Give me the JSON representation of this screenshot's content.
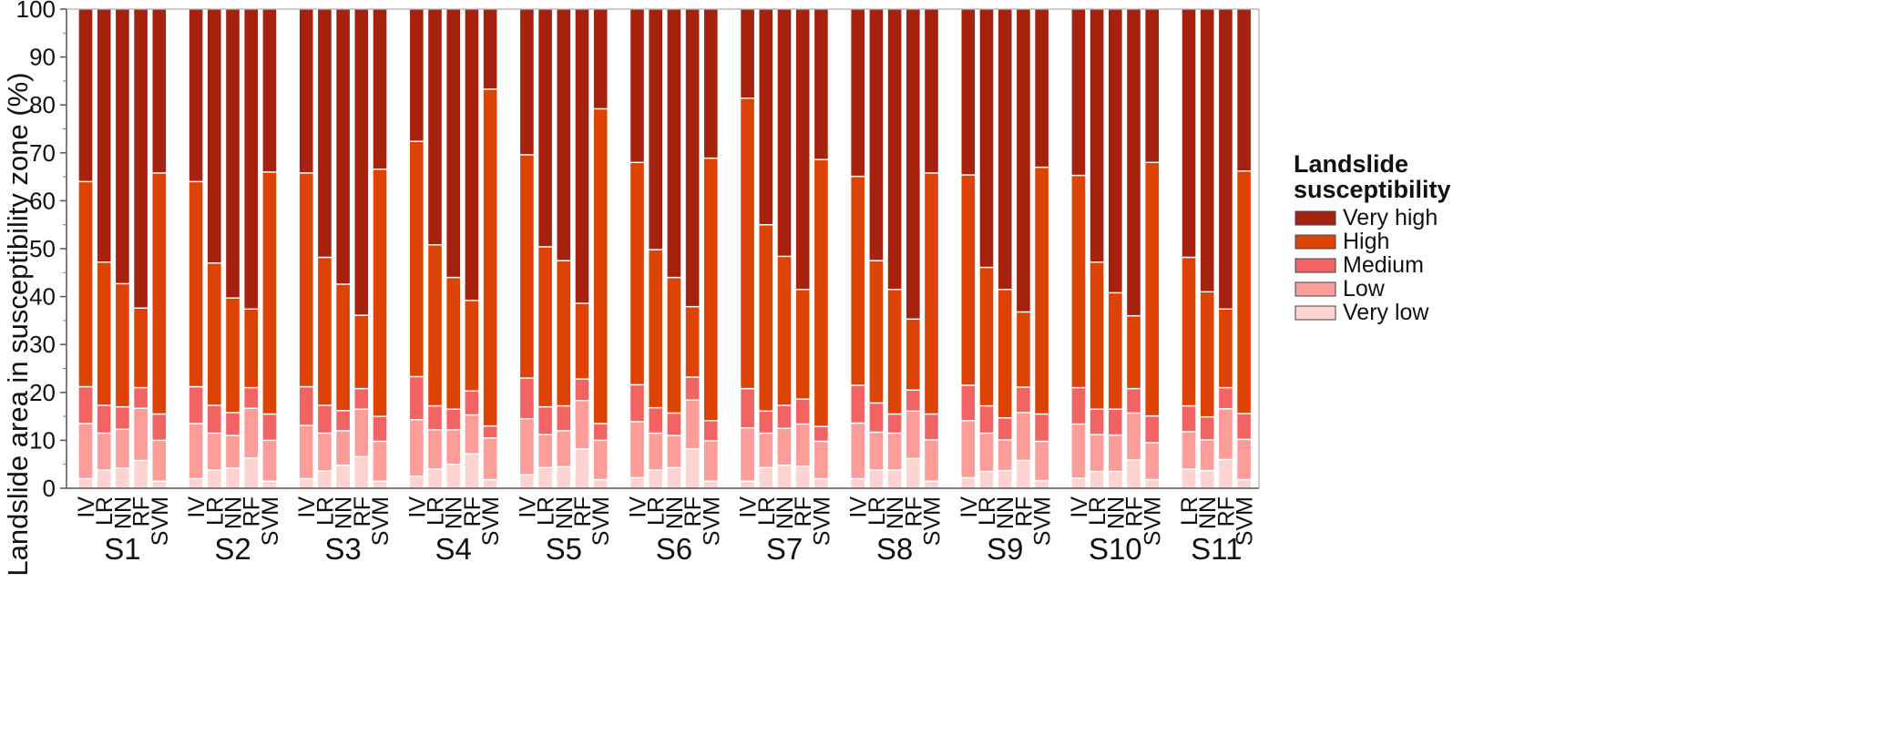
{
  "chart_data": {
    "type": "bar",
    "stacked": true,
    "percent_stacked": true,
    "ylabel": "Landslide area in susceptibility zone (%)",
    "xlabel": "",
    "ylim": [
      0,
      100
    ],
    "yticks": [
      0,
      10,
      20,
      30,
      40,
      50,
      60,
      70,
      80,
      90,
      100
    ],
    "grid": false,
    "legend": {
      "title": "Landslide susceptibility",
      "title_lines": [
        "Landslide",
        "susceptibility"
      ],
      "position": "right",
      "order": [
        "Very high",
        "High",
        "Medium",
        "Low",
        "Very low"
      ]
    },
    "series": [
      {
        "name": "Very low",
        "color": "#fed4d2"
      },
      {
        "name": "Low",
        "color": "#fc9d99"
      },
      {
        "name": "Medium",
        "color": "#f26464"
      },
      {
        "name": "High",
        "color": "#dd4304"
      },
      {
        "name": "Very high",
        "color": "#a6220f"
      }
    ],
    "value_note": "values are cumulative upper bounds (%) for Very low, Low, Medium, High; Very high fills to 100",
    "groups": [
      {
        "label": "S1",
        "bars": [
          {
            "model": "IV",
            "cum": [
              2,
              13.5,
              21.2,
              64
            ]
          },
          {
            "model": "LR",
            "cum": [
              3.8,
              11.5,
              17.3,
              47.2
            ]
          },
          {
            "model": "NN",
            "cum": [
              4.2,
              12.3,
              17,
              42.7
            ]
          },
          {
            "model": "RF",
            "cum": [
              5.8,
              16.7,
              21,
              37.6
            ]
          },
          {
            "model": "SVM",
            "cum": [
              1.5,
              10,
              15.5,
              65.8
            ]
          }
        ]
      },
      {
        "label": "S2",
        "bars": [
          {
            "model": "IV",
            "cum": [
              2,
              13.5,
              21.2,
              64
            ]
          },
          {
            "model": "LR",
            "cum": [
              3.8,
              11.5,
              17.3,
              47
            ]
          },
          {
            "model": "NN",
            "cum": [
              4.2,
              11,
              15.8,
              39.7
            ]
          },
          {
            "model": "RF",
            "cum": [
              6.3,
              16.7,
              21,
              37.4
            ]
          },
          {
            "model": "SVM",
            "cum": [
              1.5,
              10,
              15.5,
              66
            ]
          }
        ]
      },
      {
        "label": "S3",
        "bars": [
          {
            "model": "IV",
            "cum": [
              2,
              13.1,
              21.2,
              65.8
            ]
          },
          {
            "model": "LR",
            "cum": [
              3.6,
              11.5,
              17.3,
              48.2
            ]
          },
          {
            "model": "NN",
            "cum": [
              4.8,
              12,
              16.2,
              42.6
            ]
          },
          {
            "model": "RF",
            "cum": [
              6.6,
              16.5,
              20.8,
              36.1
            ]
          },
          {
            "model": "SVM",
            "cum": [
              1.5,
              9.8,
              15,
              66.6
            ]
          }
        ]
      },
      {
        "label": "S4",
        "bars": [
          {
            "model": "IV",
            "cum": [
              2.5,
              14.3,
              23.3,
              72.4
            ]
          },
          {
            "model": "LR",
            "cum": [
              4,
              12.2,
              17.2,
              50.8
            ]
          },
          {
            "model": "NN",
            "cum": [
              5,
              12.2,
              16.5,
              44
            ]
          },
          {
            "model": "RF",
            "cum": [
              7.2,
              15.3,
              20.3,
              39.2
            ]
          },
          {
            "model": "SVM",
            "cum": [
              1.8,
              10.5,
              13,
              83.3
            ]
          }
        ]
      },
      {
        "label": "S5",
        "bars": [
          {
            "model": "IV",
            "cum": [
              2.8,
              14.5,
              23,
              69.6
            ]
          },
          {
            "model": "LR",
            "cum": [
              4.3,
              11.2,
              17,
              50.4
            ]
          },
          {
            "model": "NN",
            "cum": [
              4.5,
              12,
              17.2,
              47.5
            ]
          },
          {
            "model": "RF",
            "cum": [
              8.2,
              18.3,
              22.8,
              38.6
            ]
          },
          {
            "model": "SVM",
            "cum": [
              1.8,
              10,
              13.5,
              79.2
            ]
          }
        ]
      },
      {
        "label": "S6",
        "bars": [
          {
            "model": "IV",
            "cum": [
              2.2,
              13.9,
              21.6,
              68
            ]
          },
          {
            "model": "LR",
            "cum": [
              3.8,
              11.5,
              16.8,
              49.8
            ]
          },
          {
            "model": "NN",
            "cum": [
              4.3,
              11,
              15.7,
              44
            ]
          },
          {
            "model": "RF",
            "cum": [
              8.2,
              18.4,
              23.2,
              37.9
            ]
          },
          {
            "model": "SVM",
            "cum": [
              1.5,
              9.9,
              14.1,
              68.9
            ]
          }
        ]
      },
      {
        "label": "S7",
        "bars": [
          {
            "model": "IV",
            "cum": [
              1.5,
              12.6,
              20.8,
              81.4
            ]
          },
          {
            "model": "LR",
            "cum": [
              4.3,
              11.5,
              16.1,
              55
            ]
          },
          {
            "model": "NN",
            "cum": [
              4.8,
              12.5,
              17.3,
              48.4
            ]
          },
          {
            "model": "RF",
            "cum": [
              4.6,
              13.4,
              18.6,
              41.5
            ]
          },
          {
            "model": "SVM",
            "cum": [
              2,
              9.8,
              12.9,
              68.6
            ]
          }
        ]
      },
      {
        "label": "S8",
        "bars": [
          {
            "model": "IV",
            "cum": [
              2,
              13.6,
              21.5,
              65.1
            ]
          },
          {
            "model": "LR",
            "cum": [
              3.8,
              11.7,
              17.8,
              47.5
            ]
          },
          {
            "model": "NN",
            "cum": [
              3.8,
              11.5,
              15.5,
              41.5
            ]
          },
          {
            "model": "RF",
            "cum": [
              6.2,
              16.1,
              20.5,
              35.3
            ]
          },
          {
            "model": "SVM",
            "cum": [
              1.5,
              10.1,
              15.5,
              65.8
            ]
          }
        ]
      },
      {
        "label": "S9",
        "bars": [
          {
            "model": "IV",
            "cum": [
              2.2,
              14.1,
              21.5,
              65.4
            ]
          },
          {
            "model": "LR",
            "cum": [
              3.5,
              11.5,
              17.2,
              46.1
            ]
          },
          {
            "model": "NN",
            "cum": [
              3.7,
              10.1,
              14.7,
              41.5
            ]
          },
          {
            "model": "RF",
            "cum": [
              5.8,
              15.8,
              21.1,
              36.8
            ]
          },
          {
            "model": "SVM",
            "cum": [
              1.6,
              9.8,
              15.5,
              67
            ]
          }
        ]
      },
      {
        "label": "S10",
        "bars": [
          {
            "model": "IV",
            "cum": [
              2.1,
              13.4,
              21,
              65.3
            ]
          },
          {
            "model": "LR",
            "cum": [
              3.5,
              11.2,
              16.5,
              47.2
            ]
          },
          {
            "model": "NN",
            "cum": [
              3.5,
              11.1,
              16.5,
              40.8
            ]
          },
          {
            "model": "RF",
            "cum": [
              5.9,
              15.7,
              20.8,
              36
            ]
          },
          {
            "model": "SVM",
            "cum": [
              1.8,
              9.5,
              15.1,
              68
            ]
          }
        ]
      },
      {
        "label": "S11",
        "bars": [
          {
            "model": "LR",
            "cum": [
              4,
              11.8,
              17.2,
              48.2
            ]
          },
          {
            "model": "NN",
            "cum": [
              3.7,
              10.1,
              14.9,
              41
            ]
          },
          {
            "model": "RF",
            "cum": [
              6,
              16.6,
              21,
              37.4
            ]
          },
          {
            "model": "SVM",
            "cum": [
              1.8,
              10.2,
              15.6,
              66.2
            ]
          }
        ]
      }
    ]
  }
}
